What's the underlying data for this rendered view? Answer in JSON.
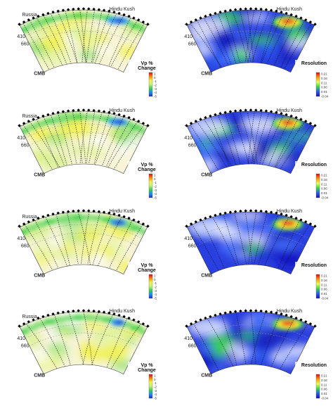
{
  "figure": {
    "panels": [
      {
        "row": 1,
        "kind": "vp",
        "place_left": "Russia",
        "place_right": "Hindu Kush",
        "depth_top": "410",
        "depth_bottom": "660",
        "core_label": "CMB",
        "colorbar_title_1": "Vp %",
        "colorbar_title_2": "Change",
        "colorbar_ticks": [
          "1",
          "0",
          "-1",
          "-2",
          "-3",
          "-4",
          "-5"
        ]
      },
      {
        "row": 1,
        "kind": "res",
        "place_left": "",
        "place_right": "Hindu Kush",
        "depth_top": "410",
        "depth_bottom": "660",
        "core_label": "CMB",
        "colorbar_title_1": "Resolution",
        "colorbar_title_2": "",
        "colorbar_ticks": [
          "0.21",
          "0.16",
          "0.11",
          "0.06",
          "0.01",
          "-0.04"
        ]
      },
      {
        "row": 2,
        "kind": "vp",
        "place_left": "Russia",
        "place_right": "Hindu Kush",
        "depth_top": "410",
        "depth_bottom": "660",
        "core_label": "CMB",
        "colorbar_title_1": "Vp %",
        "colorbar_title_2": "Change",
        "colorbar_ticks": [
          "1",
          "0",
          "-1",
          "-2",
          "-3",
          "-4",
          "-5"
        ]
      },
      {
        "row": 2,
        "kind": "res",
        "place_left": "",
        "place_right": "Hindu Kush",
        "depth_top": "410",
        "depth_bottom": "660",
        "core_label": "CMB",
        "colorbar_title_1": "Resolution",
        "colorbar_title_2": "",
        "colorbar_ticks": [
          "0.21",
          "0.16",
          "0.11",
          "0.06",
          "0.01",
          "-0.04"
        ]
      },
      {
        "row": 3,
        "kind": "vp",
        "place_left": "Russia",
        "place_right": "Hindu Kush",
        "depth_top": "410",
        "depth_bottom": "660",
        "core_label": "CMB",
        "colorbar_title_1": "Vp %",
        "colorbar_title_2": "Change",
        "colorbar_ticks": [
          "1",
          "0",
          "-1",
          "-2",
          "-3",
          "-4",
          "-5"
        ]
      },
      {
        "row": 3,
        "kind": "res",
        "place_left": "",
        "place_right": "Hindu Kush",
        "depth_top": "410",
        "depth_bottom": "660",
        "core_label": "CMB",
        "colorbar_title_1": "Resolution",
        "colorbar_title_2": "",
        "colorbar_ticks": [
          "0.21",
          "0.16",
          "0.11",
          "0.06",
          "0.01",
          "-0.04"
        ]
      },
      {
        "row": 4,
        "kind": "vp",
        "place_left": "Russia",
        "place_right": "Hindu Kush",
        "depth_top": "410",
        "depth_bottom": "660",
        "core_label": "CMB",
        "colorbar_title_1": "Vp %",
        "colorbar_title_2": "Change",
        "colorbar_ticks": [
          "1",
          "0",
          "-1",
          "-2",
          "-3",
          "-4",
          "-5"
        ]
      },
      {
        "row": 4,
        "kind": "res",
        "place_left": "",
        "place_right": "Hindu Kush",
        "depth_top": "410",
        "depth_bottom": "660",
        "core_label": "CMB",
        "colorbar_title_1": "Resolution",
        "colorbar_title_2": "",
        "colorbar_ticks": [
          "0.21",
          "0.16",
          "0.11",
          "0.06",
          "0.01",
          "-0.04"
        ]
      }
    ],
    "colors": {
      "vp_scale": [
        "#e0002a",
        "#ff8c00",
        "#f2f24a",
        "#c8f080",
        "#3ccf46",
        "#1e90ff",
        "#1a2fd0"
      ],
      "res_scale": [
        "#e8001e",
        "#ff9a00",
        "#e8ff50",
        "#38d848",
        "#2a5cf0",
        "#1010c0"
      ],
      "raypath": "#111111",
      "station": "#000000",
      "outline": "#333333"
    }
  }
}
